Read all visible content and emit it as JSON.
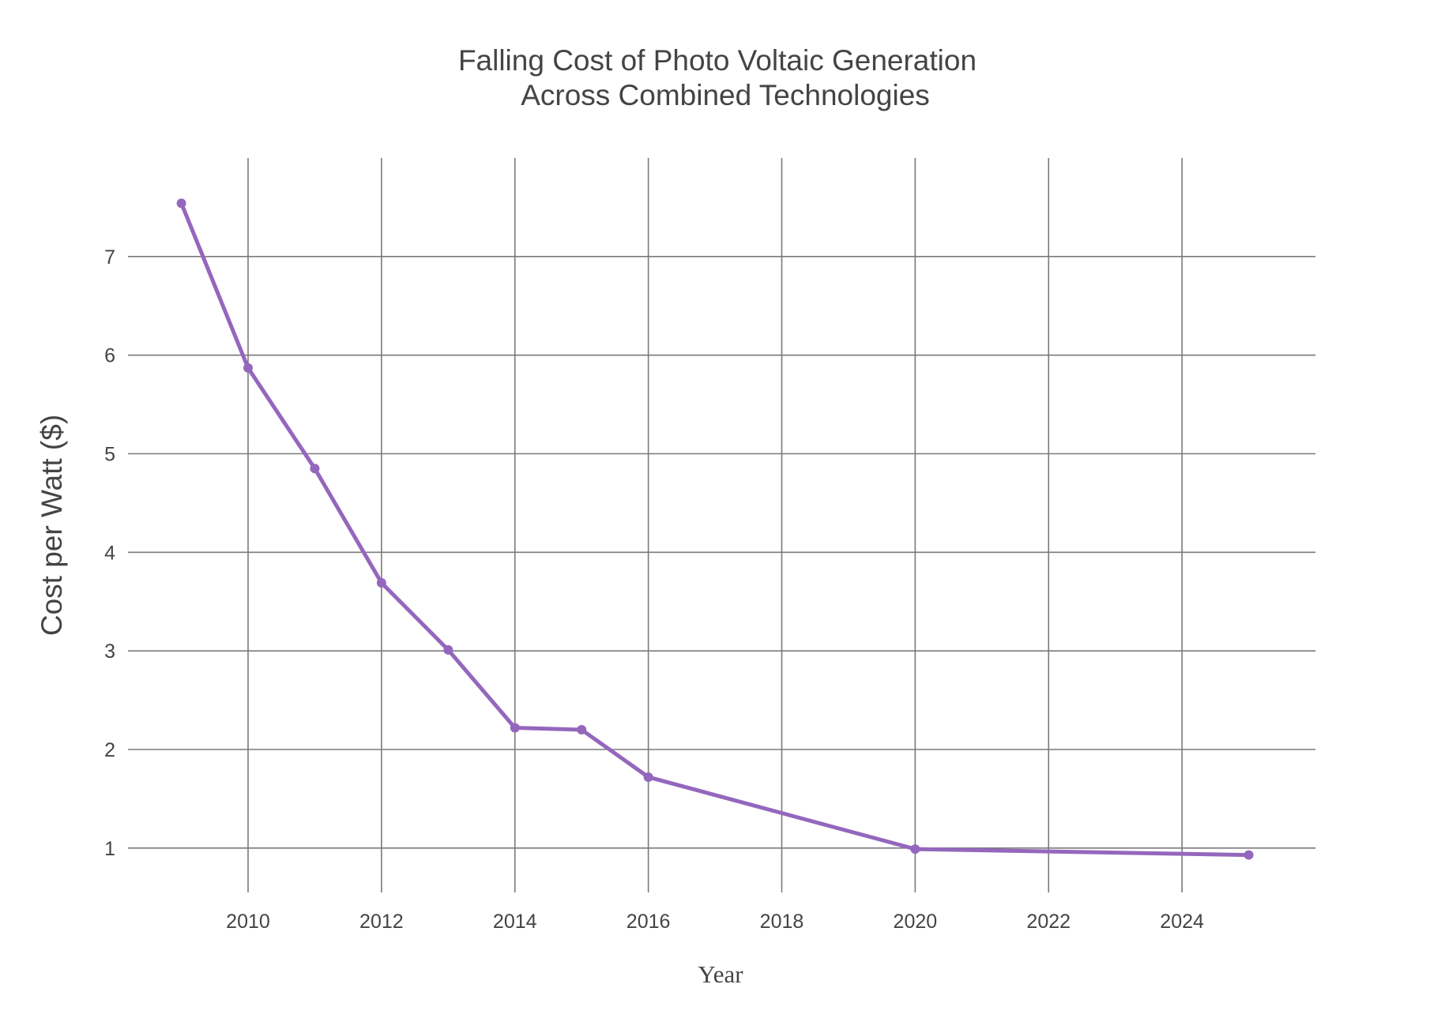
{
  "colors": {
    "line": "#9467bd",
    "grid": "#7a7a7a",
    "text": "#444444"
  },
  "chart_data": {
    "type": "line",
    "title": "Falling Cost of Photo Voltaic Generation",
    "subtitle": "Across Combined Technologies",
    "xlabel": "Year",
    "ylabel": "Cost per Watt ($)",
    "xlim": [
      2008.2,
      2026.0
    ],
    "ylim": [
      0.55,
      8.0
    ],
    "x_ticks": [
      2010,
      2012,
      2014,
      2016,
      2018,
      2020,
      2022,
      2024
    ],
    "y_ticks": [
      1,
      2,
      3,
      4,
      5,
      6,
      7
    ],
    "grid": true,
    "legend": "none",
    "series": [
      {
        "x": [
          2009,
          2010,
          2011,
          2012,
          2013,
          2014,
          2015,
          2016,
          2020,
          2025
        ],
        "values": [
          7.54,
          5.87,
          4.85,
          3.69,
          3.01,
          2.22,
          2.2,
          1.72,
          0.99,
          0.93
        ]
      }
    ]
  }
}
